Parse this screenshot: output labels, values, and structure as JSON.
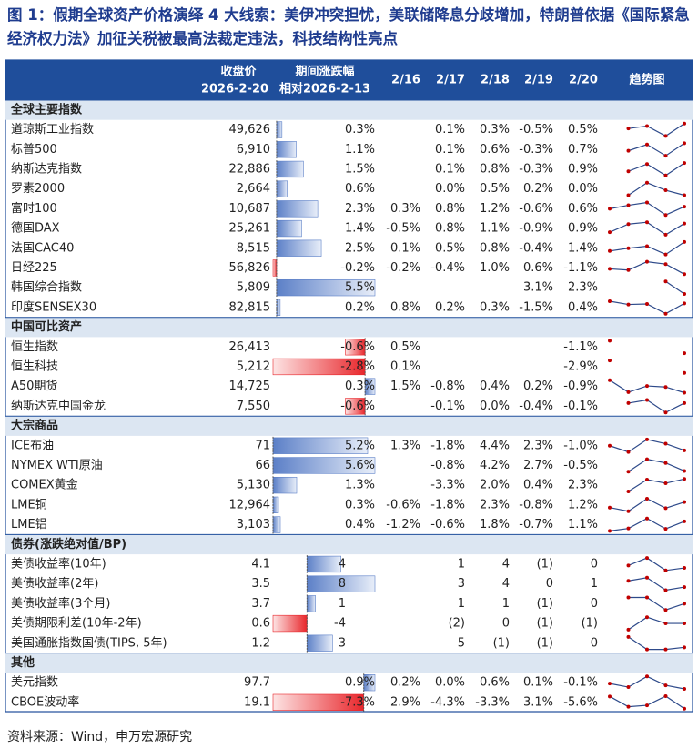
{
  "title": "图 1：假期全球资产价格演绎 4 大线索：美伊冲突担忧，美联储降息分歧增加，特朗普依据《国际紧急经济权力法》加征关税被最高法裁定违法，科技结构性亮点",
  "header": {
    "close": "收盘价",
    "close_date": "2026-2-20",
    "change": "期间涨跌幅",
    "change_base": "相对2026-2-13",
    "days": [
      "2/16",
      "2/17",
      "2/18",
      "2/19",
      "2/20"
    ],
    "trend": "趋势图"
  },
  "sections": [
    {
      "name": "全球主要指数",
      "rows": [
        {
          "name": "道琼斯工业指数",
          "close": "49,626",
          "change": {
            "value": 0.3,
            "label": "0.3%"
          },
          "days": [
            null,
            {
              "value": 0.1,
              "label": "0.1%"
            },
            {
              "value": 0.3,
              "label": "0.3%"
            },
            {
              "value": -0.5,
              "label": "-0.5%"
            },
            {
              "value": 0.5,
              "label": "0.5%"
            }
          ]
        },
        {
          "name": "标普500",
          "close": "6,910",
          "change": {
            "value": 1.1,
            "label": "1.1%"
          },
          "days": [
            null,
            {
              "value": 0.1,
              "label": "0.1%"
            },
            {
              "value": 0.6,
              "label": "0.6%"
            },
            {
              "value": -0.3,
              "label": "-0.3%"
            },
            {
              "value": 0.7,
              "label": "0.7%"
            }
          ]
        },
        {
          "name": "纳斯达克指数",
          "close": "22,886",
          "change": {
            "value": 1.5,
            "label": "1.5%"
          },
          "days": [
            null,
            {
              "value": 0.1,
              "label": "0.1%"
            },
            {
              "value": 0.8,
              "label": "0.8%"
            },
            {
              "value": -0.3,
              "label": "-0.3%"
            },
            {
              "value": 0.9,
              "label": "0.9%"
            }
          ]
        },
        {
          "name": "罗素2000",
          "close": "2,664",
          "change": {
            "value": 0.6,
            "label": "0.6%"
          },
          "days": [
            null,
            {
              "value": 0,
              "label": "0.0%"
            },
            {
              "value": 0.5,
              "label": "0.5%"
            },
            {
              "value": 0.2,
              "label": "0.2%"
            },
            {
              "value": 0,
              "label": "0.0%"
            }
          ]
        },
        {
          "name": "富时100",
          "close": "10,687",
          "change": {
            "value": 2.3,
            "label": "2.3%"
          },
          "days": [
            {
              "value": 0.3,
              "label": "0.3%"
            },
            {
              "value": 0.8,
              "label": "0.8%"
            },
            {
              "value": 1.2,
              "label": "1.2%"
            },
            {
              "value": -0.6,
              "label": "-0.6%"
            },
            {
              "value": 0.6,
              "label": "0.6%"
            }
          ]
        },
        {
          "name": "德国DAX",
          "close": "25,261",
          "change": {
            "value": 1.4,
            "label": "1.4%"
          },
          "days": [
            {
              "value": -0.5,
              "label": "-0.5%"
            },
            {
              "value": 0.8,
              "label": "0.8%"
            },
            {
              "value": 1.1,
              "label": "1.1%"
            },
            {
              "value": -0.9,
              "label": "-0.9%"
            },
            {
              "value": 0.9,
              "label": "0.9%"
            }
          ]
        },
        {
          "name": "法国CAC40",
          "close": "8,515",
          "change": {
            "value": 2.5,
            "label": "2.5%"
          },
          "days": [
            {
              "value": 0.1,
              "label": "0.1%"
            },
            {
              "value": 0.5,
              "label": "0.5%"
            },
            {
              "value": 0.8,
              "label": "0.8%"
            },
            {
              "value": -0.4,
              "label": "-0.4%"
            },
            {
              "value": 1.4,
              "label": "1.4%"
            }
          ]
        },
        {
          "name": "日经225",
          "close": "56,826",
          "change": {
            "value": -0.2,
            "label": "-0.2%"
          },
          "days": [
            {
              "value": -0.2,
              "label": "-0.2%"
            },
            {
              "value": -0.4,
              "label": "-0.4%"
            },
            {
              "value": 1.0,
              "label": "1.0%"
            },
            {
              "value": 0.6,
              "label": "0.6%"
            },
            {
              "value": -1.1,
              "label": "-1.1%"
            }
          ]
        },
        {
          "name": "韩国综合指数",
          "close": "5,809",
          "change": {
            "value": 5.5,
            "label": "5.5%"
          },
          "days": [
            null,
            null,
            null,
            {
              "value": 3.1,
              "label": "3.1%"
            },
            {
              "value": 2.3,
              "label": "2.3%"
            }
          ]
        },
        {
          "name": "印度SENSEX30",
          "close": "82,815",
          "change": {
            "value": 0.2,
            "label": "0.2%"
          },
          "days": [
            {
              "value": 0.8,
              "label": "0.8%"
            },
            {
              "value": 0.2,
              "label": "0.2%"
            },
            {
              "value": 0.3,
              "label": "0.3%"
            },
            {
              "value": -1.5,
              "label": "-1.5%"
            },
            {
              "value": 0.4,
              "label": "0.4%"
            }
          ]
        }
      ]
    },
    {
      "name": "中国可比资产",
      "rows": [
        {
          "name": "恒生指数",
          "close": "26,413",
          "change": {
            "value": -0.6,
            "label": "-0.6%"
          },
          "days": [
            {
              "value": 0.5,
              "label": "0.5%"
            },
            null,
            null,
            null,
            {
              "value": -1.1,
              "label": "-1.1%"
            }
          ]
        },
        {
          "name": "恒生科技",
          "close": "5,212",
          "change": {
            "value": -2.8,
            "label": "-2.8%"
          },
          "days": [
            {
              "value": 0.1,
              "label": "0.1%"
            },
            null,
            null,
            null,
            {
              "value": -2.9,
              "label": "-2.9%"
            }
          ]
        },
        {
          "name": "A50期货",
          "close": "14,725",
          "change": {
            "value": 0.3,
            "label": "0.3%"
          },
          "days": [
            {
              "value": 1.5,
              "label": "1.5%"
            },
            {
              "value": -0.8,
              "label": "-0.8%"
            },
            {
              "value": 0.4,
              "label": "0.4%"
            },
            {
              "value": 0.2,
              "label": "0.2%"
            },
            {
              "value": -0.9,
              "label": "-0.9%"
            }
          ]
        },
        {
          "name": "纳斯达克中国金龙",
          "close": "7,550",
          "change": {
            "value": -0.6,
            "label": "-0.6%"
          },
          "days": [
            null,
            {
              "value": -0.1,
              "label": "-0.1%"
            },
            {
              "value": 0,
              "label": "0.0%"
            },
            {
              "value": -0.4,
              "label": "-0.4%"
            },
            {
              "value": -0.1,
              "label": "-0.1%"
            }
          ]
        }
      ]
    },
    {
      "name": "大宗商品",
      "rows": [
        {
          "name": "ICE布油",
          "close": "71",
          "change": {
            "value": 5.2,
            "label": "5.2%"
          },
          "days": [
            {
              "value": 1.3,
              "label": "1.3%"
            },
            {
              "value": -1.8,
              "label": "-1.8%"
            },
            {
              "value": 4.4,
              "label": "4.4%"
            },
            {
              "value": 2.3,
              "label": "2.3%"
            },
            {
              "value": -1.0,
              "label": "-1.0%"
            }
          ]
        },
        {
          "name": "NYMEX WTI原油",
          "close": "66",
          "change": {
            "value": 5.6,
            "label": "5.6%"
          },
          "days": [
            null,
            {
              "value": -0.8,
              "label": "-0.8%"
            },
            {
              "value": 4.2,
              "label": "4.2%"
            },
            {
              "value": 2.7,
              "label": "2.7%"
            },
            {
              "value": -0.5,
              "label": "-0.5%"
            }
          ]
        },
        {
          "name": "COMEX黄金",
          "close": "5,130",
          "change": {
            "value": 1.3,
            "label": "1.3%"
          },
          "days": [
            null,
            {
              "value": -3.3,
              "label": "-3.3%"
            },
            {
              "value": 2.0,
              "label": "2.0%"
            },
            {
              "value": 0.4,
              "label": "0.4%"
            },
            {
              "value": 2.3,
              "label": "2.3%"
            }
          ]
        },
        {
          "name": "LME铜",
          "close": "12,964",
          "change": {
            "value": 0.3,
            "label": "0.3%"
          },
          "days": [
            {
              "value": -0.6,
              "label": "-0.6%"
            },
            {
              "value": -1.8,
              "label": "-1.8%"
            },
            {
              "value": 2.3,
              "label": "2.3%"
            },
            {
              "value": -0.8,
              "label": "-0.8%"
            },
            {
              "value": 1.2,
              "label": "1.2%"
            }
          ]
        },
        {
          "name": "LME铝",
          "close": "3,103",
          "change": {
            "value": 0.4,
            "label": "0.4%"
          },
          "days": [
            {
              "value": -1.2,
              "label": "-1.2%"
            },
            {
              "value": -0.6,
              "label": "-0.6%"
            },
            {
              "value": 1.8,
              "label": "1.8%"
            },
            {
              "value": -0.7,
              "label": "-0.7%"
            },
            {
              "value": 1.1,
              "label": "1.1%"
            }
          ]
        }
      ]
    },
    {
      "name": "债券(涨跌绝对值/BP)",
      "negative_color": "#e00000",
      "rows": [
        {
          "name": "美债收益率(10年)",
          "close": "4.1",
          "change": 4,
          "days": [
            null,
            1,
            4,
            {
              "value": -1,
              "label": "(1)"
            },
            0
          ]
        },
        {
          "name": "美债收益率(2年)",
          "close": "3.5",
          "change": 8,
          "days": [
            null,
            3,
            4,
            0,
            1
          ]
        },
        {
          "name": "美债收益率(3个月)",
          "close": "3.7",
          "change": 1,
          "days": [
            null,
            1,
            1,
            {
              "value": -1,
              "label": "(1)"
            },
            0
          ]
        },
        {
          "name": "美债期限利差(10年-2年)",
          "close": "0.6",
          "change": -4,
          "days": [
            null,
            {
              "value": -2,
              "label": "(2)"
            },
            0,
            {
              "value": -1,
              "label": "(1)"
            },
            {
              "value": -1,
              "label": "(1)"
            }
          ]
        },
        {
          "name": "美国通胀指数国债(TIPS, 5年)",
          "close": "1.2",
          "change": 3,
          "days": [
            null,
            5,
            {
              "value": -1,
              "label": "(1)"
            },
            {
              "value": -1,
              "label": "(1)"
            },
            0
          ]
        }
      ]
    },
    {
      "name": "其他",
      "rows": [
        {
          "name": "美元指数",
          "close": "97.7",
          "change": {
            "value": 0.9,
            "label": "0.9%"
          },
          "days": [
            {
              "value": 0.2,
              "label": "0.2%"
            },
            {
              "value": 0,
              "label": "0.0%"
            },
            {
              "value": 0.6,
              "label": "0.6%"
            },
            {
              "value": 0.1,
              "label": "0.1%"
            },
            {
              "value": -0.1,
              "label": "-0.1%"
            }
          ]
        },
        {
          "name": "CBOE波动率",
          "close": "19.1",
          "change": {
            "value": -7.3,
            "label": "-7.3%"
          },
          "days": [
            {
              "value": 2.9,
              "label": "2.9%"
            },
            {
              "value": -4.3,
              "label": "-4.3%"
            },
            {
              "value": -3.3,
              "label": "-3.3%"
            },
            {
              "value": 3.1,
              "label": "3.1%"
            },
            {
              "value": -5.6,
              "label": "-5.6%"
            }
          ]
        }
      ]
    }
  ],
  "source": "资料来源：Wind，申万宏源研究"
}
